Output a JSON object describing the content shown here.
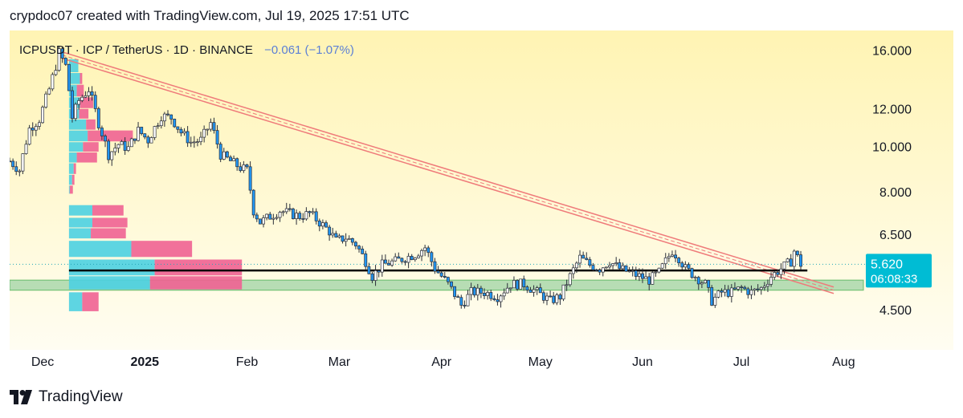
{
  "header": {
    "text": "crypdoc07 created with TradingView.com, Jul 19, 2025 17:51 UTC"
  },
  "footer": {
    "brand_text": "TradingView",
    "logo_icon": "tradingview-logo-icon"
  },
  "legend": {
    "symbol_text": "ICPUSDT · ICP / TetherUS · 1D · BINANCE",
    "change_text": "−0.061 (−1.07%)",
    "change_color": "#5b7fd6"
  },
  "price_label": {
    "price": "5.620",
    "countdown": "06:08:33",
    "color": "#00bcd4"
  },
  "colors": {
    "bg_top": "#fff4b3",
    "bg_bottom": "#fffdf2",
    "candle_up": "#ffffff",
    "candle_down": "#2196f3",
    "candle_border": "#2a2e39",
    "trendline": "#ef7a7a",
    "support_zone": "#a5d6a7",
    "support_line": "#000000",
    "vp_up": "#4dd0e1",
    "vp_down": "#f06292"
  },
  "chart_data": {
    "type": "candlestick",
    "title": "ICPUSDT · ICP / TetherUS · 1D · BINANCE",
    "y_scale": "log",
    "y_ticks": [
      16.0,
      12.0,
      10.0,
      8.0,
      6.5,
      4.5
    ],
    "y_tick_labels": [
      "16.000",
      "12.000",
      "10.000",
      "8.000",
      "6.500",
      "4.500"
    ],
    "ylim": [
      3.7,
      17.6
    ],
    "x_ticks": [
      "2024-12-01",
      "2025-01-01",
      "2025-02-01",
      "2025-03-01",
      "2025-04-01",
      "2025-05-01",
      "2025-06-01",
      "2025-07-01",
      "2025-08-01"
    ],
    "x_tick_labels": [
      "Dec",
      "2025",
      "Feb",
      "Mar",
      "Apr",
      "May",
      "Jun",
      "Jul",
      "Aug"
    ],
    "xlim": [
      "2024-11-21",
      "2025-08-07"
    ],
    "last_price": 5.62,
    "change": -0.061,
    "change_pct": -1.07,
    "grid": false,
    "price_path": [
      [
        "2024-11-21",
        9.3
      ],
      [
        "2024-11-24",
        8.9
      ],
      [
        "2024-11-27",
        10.9
      ],
      [
        "2024-11-30",
        11.4
      ],
      [
        "2024-12-03",
        13.2
      ],
      [
        "2024-12-05",
        14.8
      ],
      [
        "2024-12-06",
        15.8
      ],
      [
        "2024-12-08",
        14.8
      ],
      [
        "2024-12-10",
        11.5
      ],
      [
        "2024-12-12",
        12.5
      ],
      [
        "2024-12-15",
        13.2
      ],
      [
        "2024-12-18",
        11.2
      ],
      [
        "2024-12-21",
        9.6
      ],
      [
        "2024-12-24",
        10.1
      ],
      [
        "2024-12-27",
        9.9
      ],
      [
        "2024-12-30",
        10.8
      ],
      [
        "2025-01-02",
        10.3
      ],
      [
        "2025-01-06",
        11.6
      ],
      [
        "2025-01-09",
        11.5
      ],
      [
        "2025-01-12",
        10.7
      ],
      [
        "2025-01-15",
        10.2
      ],
      [
        "2025-01-18",
        10.3
      ],
      [
        "2025-01-21",
        11.2
      ],
      [
        "2025-01-24",
        9.6
      ],
      [
        "2025-01-27",
        9.3
      ],
      [
        "2025-01-30",
        9.0
      ],
      [
        "2025-02-01",
        8.9
      ],
      [
        "2025-02-03",
        7.3
      ],
      [
        "2025-02-05",
        6.9
      ],
      [
        "2025-02-08",
        7.1
      ],
      [
        "2025-02-11",
        7.3
      ],
      [
        "2025-02-14",
        7.2
      ],
      [
        "2025-02-17",
        7.1
      ],
      [
        "2025-02-20",
        7.2
      ],
      [
        "2025-02-23",
        6.9
      ],
      [
        "2025-02-26",
        6.6
      ],
      [
        "2025-02-28",
        6.3
      ],
      [
        "2025-03-03",
        6.4
      ],
      [
        "2025-03-06",
        6.2
      ],
      [
        "2025-03-09",
        5.7
      ],
      [
        "2025-03-11",
        5.3
      ],
      [
        "2025-03-14",
        5.6
      ],
      [
        "2025-03-18",
        5.7
      ],
      [
        "2025-03-21",
        5.8
      ],
      [
        "2025-03-24",
        5.9
      ],
      [
        "2025-03-27",
        6.1
      ],
      [
        "2025-03-30",
        5.5
      ],
      [
        "2025-04-03",
        5.1
      ],
      [
        "2025-04-07",
        4.6
      ],
      [
        "2025-04-10",
        4.9
      ],
      [
        "2025-04-14",
        4.9
      ],
      [
        "2025-04-18",
        4.8
      ],
      [
        "2025-04-22",
        5.1
      ],
      [
        "2025-04-26",
        5.1
      ],
      [
        "2025-04-30",
        4.9
      ],
      [
        "2025-05-04",
        4.7
      ],
      [
        "2025-05-07",
        4.8
      ],
      [
        "2025-05-10",
        5.3
      ],
      [
        "2025-05-13",
        5.8
      ],
      [
        "2025-05-16",
        5.6
      ],
      [
        "2025-05-19",
        5.5
      ],
      [
        "2025-05-22",
        5.7
      ],
      [
        "2025-05-25",
        5.5
      ],
      [
        "2025-05-28",
        5.4
      ],
      [
        "2025-05-31",
        5.3
      ],
      [
        "2025-06-03",
        5.2
      ],
      [
        "2025-06-06",
        5.4
      ],
      [
        "2025-06-08",
        5.7
      ],
      [
        "2025-06-10",
        6.0
      ],
      [
        "2025-06-12",
        5.8
      ],
      [
        "2025-06-14",
        5.5
      ],
      [
        "2025-06-17",
        5.3
      ],
      [
        "2025-06-20",
        5.1
      ],
      [
        "2025-06-22",
        4.7
      ],
      [
        "2025-06-25",
        4.9
      ],
      [
        "2025-06-28",
        4.9
      ],
      [
        "2025-07-01",
        5.0
      ],
      [
        "2025-07-04",
        4.9
      ],
      [
        "2025-07-07",
        5.0
      ],
      [
        "2025-07-10",
        5.3
      ],
      [
        "2025-07-13",
        5.5
      ],
      [
        "2025-07-16",
        5.7
      ],
      [
        "2025-07-17",
        6.0
      ],
      [
        "2025-07-19",
        5.62
      ]
    ],
    "trendline": {
      "start": {
        "date": "2024-12-07",
        "price": 15.6
      },
      "end": {
        "date": "2025-07-29",
        "price": 4.95
      }
    },
    "support_line": {
      "price": 5.45,
      "start": "2024-12-09",
      "end": "2025-07-21"
    },
    "support_zone": {
      "low": 4.95,
      "high": 5.2
    },
    "last_price_line": 5.62,
    "volume_profile": {
      "start": "2024-12-09",
      "rows": [
        {
          "price_low": 14.3,
          "price_high": 15.3,
          "up": 12,
          "down": 0
        },
        {
          "price_low": 13.5,
          "price_high": 14.3,
          "up": 14,
          "down": 3
        },
        {
          "price_low": 12.7,
          "price_high": 13.5,
          "up": 10,
          "down": 9
        },
        {
          "price_low": 12.0,
          "price_high": 12.7,
          "up": 14,
          "down": 17
        },
        {
          "price_low": 11.4,
          "price_high": 12.0,
          "up": 13,
          "down": 12
        },
        {
          "price_low": 10.8,
          "price_high": 11.4,
          "up": 22,
          "down": 12
        },
        {
          "price_low": 10.2,
          "price_high": 10.8,
          "up": 24,
          "down": 58
        },
        {
          "price_low": 9.7,
          "price_high": 10.2,
          "up": 18,
          "down": 20
        },
        {
          "price_low": 9.2,
          "price_high": 9.7,
          "up": 10,
          "down": 26
        },
        {
          "price_low": 8.7,
          "price_high": 9.2,
          "up": 6,
          "down": 3
        },
        {
          "price_low": 8.25,
          "price_high": 8.7,
          "up": 4,
          "down": 3
        },
        {
          "price_low": 7.9,
          "price_high": 8.25,
          "up": 1,
          "down": 4
        },
        {
          "price_low": 7.1,
          "price_high": 7.5,
          "up": 30,
          "down": 40
        },
        {
          "price_low": 6.7,
          "price_high": 7.05,
          "up": 30,
          "down": 45
        },
        {
          "price_low": 6.35,
          "price_high": 6.7,
          "up": 28,
          "down": 45
        },
        {
          "price_low": 5.8,
          "price_high": 6.3,
          "up": 80,
          "down": 78
        },
        {
          "price_low": 5.3,
          "price_high": 5.75,
          "up": 110,
          "down": 112
        },
        {
          "price_low": 4.95,
          "price_high": 5.3,
          "up": 104,
          "down": 118
        },
        {
          "price_low": 4.45,
          "price_high": 4.9,
          "up": 17,
          "down": 21
        }
      ]
    }
  }
}
